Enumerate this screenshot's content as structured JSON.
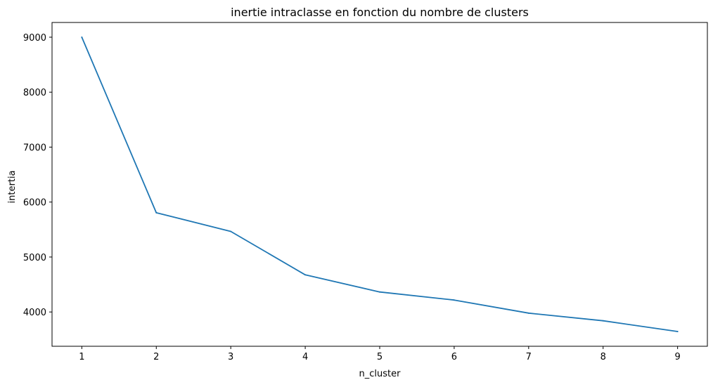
{
  "chart_data": {
    "type": "line",
    "title": "inertie intraclasse en fonction du nombre de clusters",
    "xlabel": "n_cluster",
    "ylabel": "intertia",
    "x": [
      1,
      2,
      3,
      4,
      5,
      6,
      7,
      8,
      9
    ],
    "y": [
      9000,
      5806,
      5466,
      4676,
      4364,
      4217,
      3979,
      3840,
      3644
    ],
    "xticks": [
      "1",
      "2",
      "3",
      "4",
      "5",
      "6",
      "7",
      "8",
      "9"
    ],
    "yticks": [
      4000,
      5000,
      6000,
      7000,
      8000,
      9000
    ],
    "ytick_labels": [
      "4000",
      "5000",
      "6000",
      "7000",
      "8000",
      "9000"
    ],
    "xlim": [
      0.6,
      9.4
    ],
    "ylim": [
      3376,
      9268
    ],
    "grid": false,
    "colors": {
      "line": "#1f77b4",
      "axes": "#000000"
    }
  }
}
